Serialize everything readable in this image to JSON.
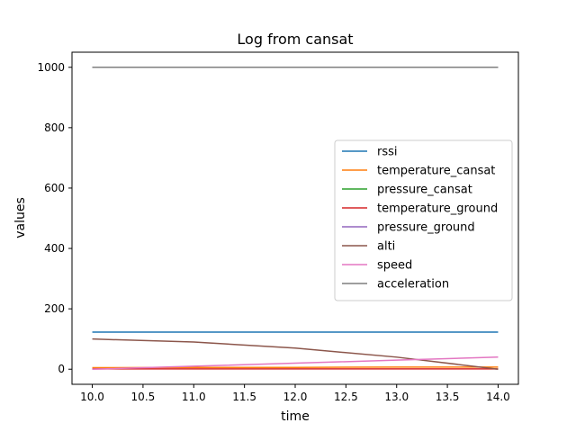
{
  "chart_data": {
    "type": "line",
    "title": "Log from cansat",
    "xlabel": "time",
    "ylabel": "values",
    "xlim": [
      9.8,
      14.2
    ],
    "ylim": [
      -50,
      1050
    ],
    "xticks": [
      "10.0",
      "10.5",
      "11.0",
      "11.5",
      "12.0",
      "12.5",
      "13.0",
      "13.5",
      "14.0"
    ],
    "xtick_values": [
      10.0,
      10.5,
      11.0,
      11.5,
      12.0,
      12.5,
      13.0,
      13.5,
      14.0
    ],
    "yticks": [
      "0",
      "200",
      "400",
      "600",
      "800",
      "1000"
    ],
    "ytick_values": [
      0,
      200,
      400,
      600,
      800,
      1000
    ],
    "grid": false,
    "legend_position": "center-right",
    "series": [
      {
        "name": "rssi",
        "color": "#1f77b4",
        "x": [
          10,
          11,
          12,
          13,
          14
        ],
        "values": [
          123,
          123,
          123,
          123,
          123
        ]
      },
      {
        "name": "temperature_cansat",
        "color": "#ff7f0e",
        "x": [
          10,
          11,
          12,
          13,
          14
        ],
        "values": [
          5,
          6,
          6,
          7,
          7
        ]
      },
      {
        "name": "pressure_cansat",
        "color": "#2ca02c",
        "x": [
          10,
          11,
          12,
          13,
          14
        ],
        "values": [
          1000,
          1000,
          1000,
          1000,
          1000
        ]
      },
      {
        "name": "temperature_ground",
        "color": "#d62728",
        "x": [
          10,
          11,
          12,
          13,
          14
        ],
        "values": [
          1,
          1,
          1,
          1,
          1
        ]
      },
      {
        "name": "pressure_ground",
        "color": "#9467bd",
        "x": [
          10,
          11,
          12,
          13,
          14
        ],
        "values": [
          1000,
          1000,
          1000,
          1000,
          1000
        ]
      },
      {
        "name": "alti",
        "color": "#8c564b",
        "x": [
          10,
          11,
          12,
          13,
          14
        ],
        "values": [
          100,
          90,
          70,
          40,
          0
        ]
      },
      {
        "name": "speed",
        "color": "#e377c2",
        "x": [
          10,
          11,
          12,
          13,
          14
        ],
        "values": [
          0,
          10,
          20,
          30,
          40
        ]
      },
      {
        "name": "acceleration",
        "color": "#7f7f7f",
        "x": [
          10,
          11,
          12,
          13,
          14
        ],
        "values": [
          1000,
          1000,
          1000,
          1000,
          1000
        ]
      }
    ]
  }
}
